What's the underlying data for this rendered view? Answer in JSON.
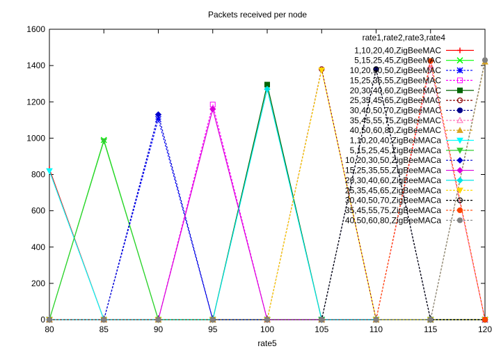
{
  "chart_data": {
    "type": "line",
    "title": "Packets received per node",
    "xlabel": "rate5",
    "ylabel": "",
    "xlim": [
      80,
      120
    ],
    "ylim": [
      0,
      1600
    ],
    "x_ticks": [
      80,
      85,
      90,
      95,
      100,
      105,
      110,
      115,
      120
    ],
    "y_ticks": [
      0,
      200,
      400,
      600,
      800,
      1000,
      1200,
      1400,
      1600
    ],
    "grid": false,
    "legend_title": "rate1,rate2,rate3,rate4",
    "legend_position": "top-right",
    "x": [
      80,
      85,
      90,
      95,
      100,
      105,
      110,
      115,
      120
    ],
    "series": [
      {
        "name": "1,10,20,40,ZigBeeMAC",
        "color": "#ff0000",
        "marker": "plus",
        "dash": "",
        "values": [
          830,
          0,
          0,
          0,
          0,
          0,
          0,
          0,
          0
        ]
      },
      {
        "name": "5,15,25,45,ZigBeeMAC",
        "color": "#00ff00",
        "marker": "cross",
        "dash": "",
        "values": [
          0,
          990,
          0,
          0,
          0,
          0,
          0,
          0,
          0
        ]
      },
      {
        "name": "10,20,30,50,ZigBeeMAC",
        "color": "#0000ff",
        "marker": "star",
        "dash": "3,2",
        "values": [
          0,
          0,
          1105,
          0,
          0,
          0,
          0,
          0,
          0
        ]
      },
      {
        "name": "15,25,35,55,ZigBeeMAC",
        "color": "#ff00ff",
        "marker": "box",
        "dash": "3,2",
        "values": [
          0,
          0,
          0,
          1185,
          0,
          0,
          0,
          0,
          0
        ]
      },
      {
        "name": "20,30,40,60,ZigBeeMAC",
        "color": "#006400",
        "marker": "filled-box",
        "dash": "",
        "values": [
          0,
          0,
          0,
          0,
          1295,
          0,
          0,
          0,
          0
        ]
      },
      {
        "name": "25,35,45,65,ZigBeeMAC",
        "color": "#8b0000",
        "marker": "circle",
        "dash": "3,2",
        "values": [
          0,
          0,
          0,
          0,
          0,
          1380,
          0,
          0,
          0
        ]
      },
      {
        "name": "30,40,50,70,ZigBeeMAC",
        "color": "#00008b",
        "marker": "filled-circle",
        "dash": "3,2",
        "values": [
          0,
          0,
          0,
          0,
          0,
          0,
          1380,
          0,
          0
        ]
      },
      {
        "name": "35,45,55,75,ZigBeeMAC",
        "color": "#ff69b4",
        "marker": "triangle",
        "dash": "3,2",
        "values": [
          0,
          0,
          0,
          0,
          0,
          0,
          0,
          1400,
          0
        ]
      },
      {
        "name": "40,50,60,80,ZigBeeMAC",
        "color": "#daa520",
        "marker": "filled-triangle",
        "dash": "3,2",
        "values": [
          0,
          0,
          0,
          0,
          0,
          0,
          0,
          0,
          1420
        ]
      },
      {
        "name": "1,10,20,40,ZigBeeMACa",
        "color": "#00ffff",
        "marker": "filled-inv-triangle",
        "dash": "",
        "values": [
          820,
          0,
          0,
          0,
          0,
          0,
          0,
          0,
          0
        ]
      },
      {
        "name": "5,15,25,45,ZigBeeMACa",
        "color": "#32cd32",
        "marker": "filled-inv-triangle",
        "dash": "",
        "values": [
          0,
          985,
          0,
          0,
          0,
          0,
          0,
          0,
          0
        ]
      },
      {
        "name": "10,20,30,50,ZigBeeMACa",
        "color": "#0000cd",
        "marker": "filled-diamond",
        "dash": "3,2",
        "values": [
          0,
          0,
          1130,
          0,
          0,
          0,
          0,
          0,
          0
        ]
      },
      {
        "name": "15,25,35,55,ZigBeeMACa",
        "color": "#da00da",
        "marker": "filled-diamond",
        "dash": "",
        "values": [
          0,
          0,
          0,
          1160,
          0,
          0,
          0,
          0,
          0
        ]
      },
      {
        "name": "20,30,40,60,ZigBeeMACa",
        "color": "#00e5e5",
        "marker": "filled-diamond",
        "dash": "",
        "values": [
          0,
          0,
          0,
          0,
          1270,
          0,
          0,
          0,
          0
        ]
      },
      {
        "name": "25,35,45,65,ZigBeeMACa",
        "color": "#ffd700",
        "marker": "filled-inv-triangle",
        "dash": "3,2",
        "values": [
          0,
          0,
          0,
          0,
          0,
          1375,
          0,
          0,
          0
        ]
      },
      {
        "name": "30,40,50,70,ZigBeeMACa",
        "color": "#000000",
        "marker": "circle",
        "dash": "3,2",
        "values": [
          0,
          0,
          0,
          0,
          0,
          0,
          1380,
          0,
          0
        ]
      },
      {
        "name": "35,45,55,75,ZigBeeMACa",
        "color": "#ff4500",
        "marker": "filled-circle",
        "dash": "3,2",
        "values": [
          0,
          0,
          0,
          0,
          0,
          0,
          0,
          1425,
          0
        ]
      },
      {
        "name": "40,50,60,80,ZigBeeMACa",
        "color": "#808080",
        "marker": "filled-circle",
        "dash": "3,2",
        "values": [
          0,
          0,
          0,
          0,
          0,
          0,
          0,
          0,
          1430
        ]
      }
    ]
  }
}
